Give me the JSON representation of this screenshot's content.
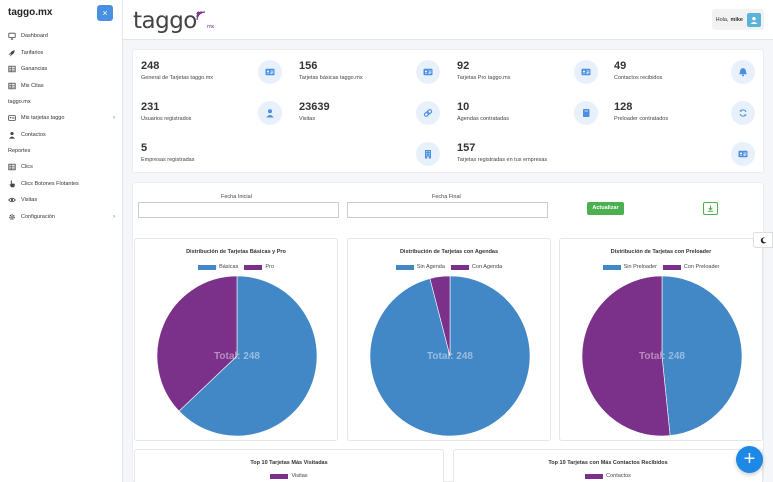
{
  "sidebar": {
    "brand": "taggo.mx",
    "close_label": "×",
    "items": [
      {
        "label": "Dashboard",
        "icon": "monitor-icon",
        "name": "sidebar-item-dashboard"
      },
      {
        "label": "Tarifarios",
        "icon": "rocket-icon",
        "name": "sidebar-item-tarifarios"
      },
      {
        "label": "Ganancias",
        "icon": "table-icon",
        "name": "sidebar-item-ganancias"
      },
      {
        "label": "Mis Citas",
        "icon": "table-icon",
        "name": "sidebar-item-mis-citas"
      }
    ],
    "section_taggo": "taggo.mx",
    "items2": [
      {
        "label": "Mis tarjetas taggo",
        "icon": "card-icon",
        "name": "sidebar-item-mis-tarjetas",
        "chevron": true
      },
      {
        "label": "Contactos",
        "icon": "user-icon",
        "name": "sidebar-item-contactos"
      }
    ],
    "section_reportes": "Reportes",
    "items3": [
      {
        "label": "Clics",
        "icon": "table-icon",
        "name": "sidebar-item-clics"
      },
      {
        "label": "Clics Botones Flotantes",
        "icon": "pointer-icon",
        "name": "sidebar-item-clics-botones"
      },
      {
        "label": "Visitas",
        "icon": "eye-icon",
        "name": "sidebar-item-visitas"
      },
      {
        "label": "Configuración",
        "icon": "gear-icon",
        "name": "sidebar-item-configuracion",
        "chevron": true
      }
    ]
  },
  "header": {
    "logo_text": "taggo",
    "logo_suffix": "mx",
    "greeting": "Hola,",
    "username": "mike"
  },
  "stats": [
    {
      "value": "248",
      "label": "General de Tarjetas taggo.mx",
      "icon": "id-card-icon"
    },
    {
      "value": "156",
      "label": "Tarjetas básicas taggo.mx",
      "icon": "id-card-icon"
    },
    {
      "value": "92",
      "label": "Tarjetas Pro taggo.mx",
      "icon": "id-card-icon"
    },
    {
      "value": "49",
      "label": "Contactos recibidos",
      "icon": "bell-icon"
    },
    {
      "value": "231",
      "label": "Usuarios registrados",
      "icon": "user-icon"
    },
    {
      "value": "23639",
      "label": "Visitas",
      "icon": "link-icon"
    },
    {
      "value": "10",
      "label": "Agendas contratadas",
      "icon": "book-icon"
    },
    {
      "value": "128",
      "label": "Preloader contratados",
      "icon": "refresh-icon"
    },
    {
      "value": "5",
      "label": "Empresas registradas",
      "icon": "building-icon"
    },
    {
      "value": "157",
      "label": "Tarjetas registradas en tus empresas",
      "icon": "id-card-icon"
    }
  ],
  "filters": {
    "start_label": "Fecha Inicial",
    "end_label": "Fecha Final",
    "start_value": "",
    "end_value": "",
    "update_label": "Actualizar"
  },
  "colors": {
    "blue": "#4287c6",
    "purple": "#7b3089",
    "accent": "#1e88e5"
  },
  "chart_data": [
    {
      "type": "pie",
      "title": "Distribución de Tarjetas Básicas y Pro",
      "categories": [
        "Básicas",
        "Pro"
      ],
      "values": [
        156,
        92
      ],
      "center_label": "Total: 248"
    },
    {
      "type": "pie",
      "title": "Distribución de Tarjetas con Agendas",
      "categories": [
        "Sin Agenda",
        "Con Agenda"
      ],
      "values": [
        238,
        10
      ],
      "center_label": "Total: 248"
    },
    {
      "type": "pie",
      "title": "Distribución de Tarjetas con Preloader",
      "categories": [
        "Sin Preloader",
        "Con Preloader"
      ],
      "values": [
        120,
        128
      ],
      "center_label": "Total: 248"
    },
    {
      "type": "bar",
      "title": "Top 10 Tarjetas Más Visitadas",
      "series": [
        {
          "name": "Visitas",
          "values": []
        }
      ]
    },
    {
      "type": "bar",
      "title": "Top 10 Tarjetas con Más Contactos Recibidos",
      "series": [
        {
          "name": "Contactos",
          "values": []
        }
      ]
    }
  ]
}
